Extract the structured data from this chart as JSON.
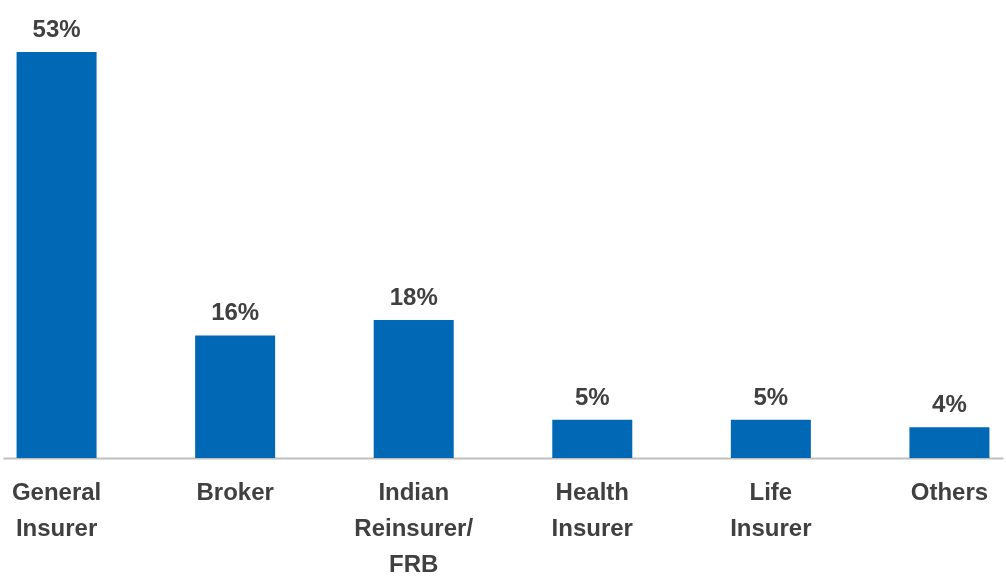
{
  "chart_data": {
    "type": "bar",
    "categories": [
      "General Insurer",
      "Broker",
      "Indian Reinsurer/ FRB",
      "Health Insurer",
      "Life Insurer",
      "Others"
    ],
    "values": [
      53,
      16,
      18,
      5,
      5,
      4
    ],
    "value_labels": [
      "53%",
      "16%",
      "18%",
      "5%",
      "5%",
      "4%"
    ],
    "color": "#0068b5"
  }
}
